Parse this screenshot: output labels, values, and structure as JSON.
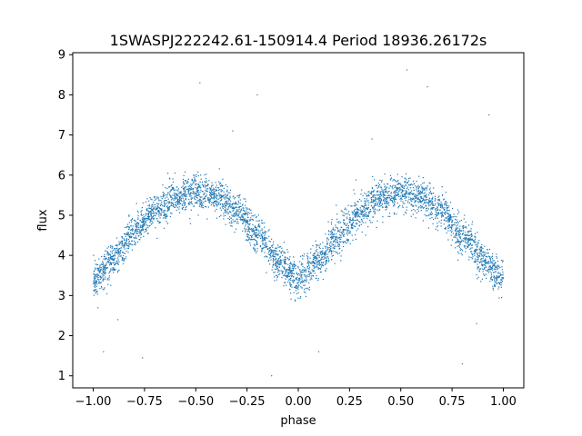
{
  "chart_data": {
    "type": "scatter",
    "title": "1SWASPJ222242.61-150914.4 Period 18936.26172s",
    "xlabel": "phase",
    "ylabel": "flux",
    "xlim": [
      -1.1,
      1.1
    ],
    "ylim": [
      0.7,
      9.05
    ],
    "xticks": [
      -1.0,
      -0.75,
      -0.5,
      -0.25,
      0.0,
      0.25,
      0.5,
      0.75,
      1.0
    ],
    "xtick_labels": [
      "−1.00",
      "−0.75",
      "−0.50",
      "−0.25",
      "0.00",
      "0.25",
      "0.50",
      "0.75",
      "1.00"
    ],
    "yticks": [
      1,
      2,
      3,
      4,
      5,
      6,
      7,
      8,
      9
    ],
    "ytick_labels": [
      "1",
      "2",
      "3",
      "4",
      "5",
      "6",
      "7",
      "8",
      "9"
    ],
    "grid": false,
    "marker_color": "#1f77b4",
    "series": [
      {
        "description_phase": [
          -1.0,
          -0.9,
          -0.8,
          -0.7,
          -0.6,
          -0.5,
          -0.4,
          -0.3,
          -0.2,
          -0.1,
          0.0,
          0.1,
          0.2,
          0.3,
          0.4,
          0.5,
          0.6,
          0.7,
          0.8,
          0.9,
          1.0
        ],
        "trend_flux": [
          3.4,
          3.9,
          4.6,
          5.1,
          5.45,
          5.55,
          5.45,
          5.1,
          4.5,
          3.85,
          3.4,
          3.85,
          4.5,
          5.1,
          5.45,
          5.55,
          5.45,
          5.1,
          4.5,
          3.9,
          3.4
        ],
        "outliers": [
          [
            -0.48,
            8.3
          ],
          [
            -0.2,
            8.0
          ],
          [
            0.53,
            8.62
          ],
          [
            0.63,
            8.2
          ],
          [
            0.93,
            7.5
          ],
          [
            -0.95,
            1.6
          ],
          [
            -0.76,
            1.45
          ],
          [
            -0.13,
            1.0
          ],
          [
            0.1,
            1.6
          ],
          [
            0.8,
            1.3
          ],
          [
            -0.32,
            7.1
          ],
          [
            0.36,
            6.9
          ],
          [
            -0.88,
            2.4
          ],
          [
            0.87,
            2.3
          ]
        ]
      }
    ]
  }
}
